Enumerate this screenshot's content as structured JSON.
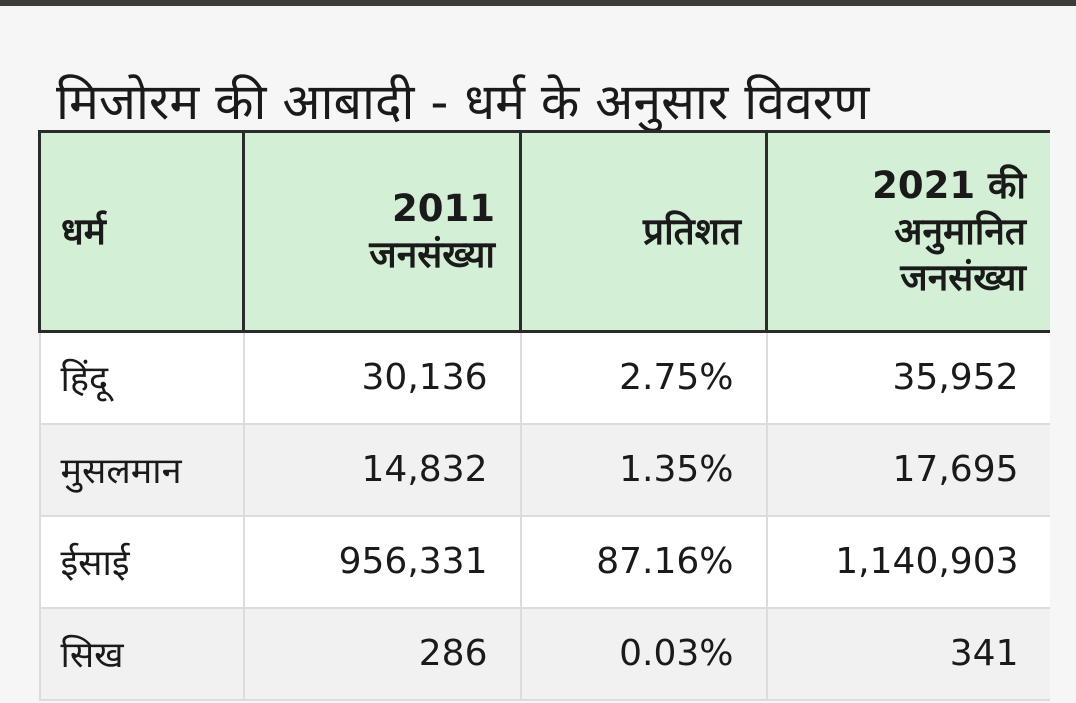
{
  "title": "मिजोरम की आबादी - धर्म के अनुसार विवरण",
  "table": {
    "headers": {
      "religion": "धर्म",
      "pop2011": [
        "2011",
        "जनसंख्या"
      ],
      "percent": "प्रतिशत",
      "est2021": [
        "2021 की",
        "अनुमानित",
        "जनसंख्या"
      ]
    },
    "rows": [
      {
        "religion": "हिंदू",
        "pop2011": "30,136",
        "percent": "2.75%",
        "est2021": "35,952"
      },
      {
        "religion": "मुसलमान",
        "pop2011": "14,832",
        "percent": "1.35%",
        "est2021": "17,695"
      },
      {
        "religion": "ईसाई",
        "pop2011": "956,331",
        "percent": "87.16%",
        "est2021": "1,140,903"
      },
      {
        "religion": "सिख",
        "pop2011": "286",
        "percent": "0.03%",
        "est2021": "341"
      }
    ]
  },
  "colors": {
    "header_bg": "#d3efd6",
    "border": "#2b2b2b",
    "top_strip": "#3b3d36"
  }
}
